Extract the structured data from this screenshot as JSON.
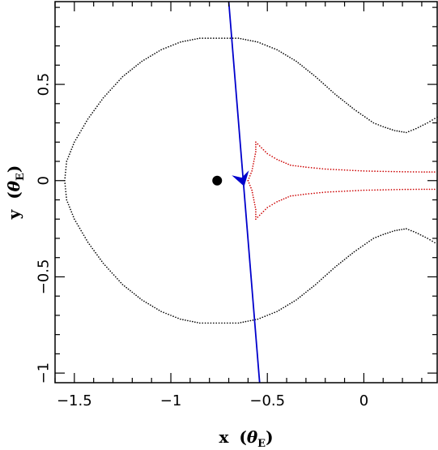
{
  "chart_data": {
    "type": "scatter",
    "xlabel": {
      "main": "x",
      "open": "(",
      "theta": "θ",
      "sub": "E",
      "close": ")"
    },
    "ylabel": {
      "main": "y",
      "open": "(",
      "theta": "θ",
      "sub": "E",
      "close": ")"
    },
    "xlim": [
      -1.6,
      0.38
    ],
    "ylim": [
      -1.05,
      0.93
    ],
    "x_ticks": [
      {
        "value": -1.5,
        "label": "−1.5"
      },
      {
        "value": -1.0,
        "label": "−1"
      },
      {
        "value": -0.5,
        "label": "−0.5"
      },
      {
        "value": 0.0,
        "label": "0"
      }
    ],
    "y_ticks": [
      {
        "value": -1.0,
        "label": "−1"
      },
      {
        "value": -0.5,
        "label": "−0.5"
      },
      {
        "value": 0.0,
        "label": "0"
      },
      {
        "value": 0.5,
        "label": "0.5"
      }
    ],
    "grid": false,
    "series": [
      {
        "kind": "critical-curve",
        "color": "#000000",
        "points": [
          [
            0.38,
            0.33
          ],
          [
            0.33,
            0.3
          ],
          [
            0.27,
            0.27
          ],
          [
            0.22,
            0.25
          ],
          [
            0.16,
            0.26
          ],
          [
            0.1,
            0.28
          ],
          [
            0.05,
            0.3
          ],
          [
            -0.05,
            0.37
          ],
          [
            -0.15,
            0.45
          ],
          [
            -0.25,
            0.54
          ],
          [
            -0.35,
            0.62
          ],
          [
            -0.45,
            0.68
          ],
          [
            -0.55,
            0.72
          ],
          [
            -0.65,
            0.74
          ],
          [
            -0.75,
            0.74
          ],
          [
            -0.85,
            0.74
          ],
          [
            -0.95,
            0.72
          ],
          [
            -1.05,
            0.68
          ],
          [
            -1.15,
            0.62
          ],
          [
            -1.25,
            0.54
          ],
          [
            -1.35,
            0.43
          ],
          [
            -1.43,
            0.32
          ],
          [
            -1.5,
            0.2
          ],
          [
            -1.54,
            0.1
          ],
          [
            -1.55,
            0.0
          ],
          [
            -1.54,
            -0.1
          ],
          [
            -1.5,
            -0.2
          ],
          [
            -1.43,
            -0.32
          ],
          [
            -1.35,
            -0.43
          ],
          [
            -1.25,
            -0.54
          ],
          [
            -1.15,
            -0.62
          ],
          [
            -1.05,
            -0.68
          ],
          [
            -0.95,
            -0.72
          ],
          [
            -0.85,
            -0.74
          ],
          [
            -0.75,
            -0.74
          ],
          [
            -0.65,
            -0.74
          ],
          [
            -0.55,
            -0.72
          ],
          [
            -0.45,
            -0.68
          ],
          [
            -0.35,
            -0.62
          ],
          [
            -0.25,
            -0.54
          ],
          [
            -0.15,
            -0.45
          ],
          [
            -0.05,
            -0.37
          ],
          [
            0.05,
            -0.3
          ],
          [
            0.1,
            -0.28
          ],
          [
            0.16,
            -0.26
          ],
          [
            0.22,
            -0.25
          ],
          [
            0.27,
            -0.27
          ],
          [
            0.33,
            -0.3
          ],
          [
            0.38,
            -0.33
          ]
        ]
      },
      {
        "kind": "caustic-upper",
        "color": "#cc0000",
        "points": [
          [
            -0.6,
            0.0
          ],
          [
            -0.58,
            0.05
          ],
          [
            -0.57,
            0.1
          ],
          [
            -0.56,
            0.15
          ],
          [
            -0.56,
            0.2
          ],
          [
            -0.53,
            0.17
          ],
          [
            -0.5,
            0.14
          ],
          [
            -0.45,
            0.11
          ],
          [
            -0.38,
            0.08
          ],
          [
            -0.3,
            0.07
          ],
          [
            -0.2,
            0.06
          ],
          [
            -0.1,
            0.055
          ],
          [
            0.0,
            0.05
          ],
          [
            0.1,
            0.048
          ],
          [
            0.2,
            0.046
          ],
          [
            0.3,
            0.045
          ],
          [
            0.38,
            0.045
          ]
        ]
      },
      {
        "kind": "caustic-lower",
        "color": "#cc0000",
        "points": [
          [
            -0.6,
            0.0
          ],
          [
            -0.58,
            -0.05
          ],
          [
            -0.57,
            -0.1
          ],
          [
            -0.56,
            -0.15
          ],
          [
            -0.56,
            -0.2
          ],
          [
            -0.53,
            -0.17
          ],
          [
            -0.5,
            -0.14
          ],
          [
            -0.45,
            -0.11
          ],
          [
            -0.38,
            -0.08
          ],
          [
            -0.3,
            -0.07
          ],
          [
            -0.2,
            -0.06
          ],
          [
            -0.1,
            -0.055
          ],
          [
            0.0,
            -0.05
          ],
          [
            0.1,
            -0.048
          ],
          [
            0.2,
            -0.046
          ],
          [
            0.3,
            -0.045
          ],
          [
            0.38,
            -0.045
          ]
        ]
      }
    ],
    "trajectory": {
      "color": "#0000cc",
      "start": [
        -0.7,
        0.93
      ],
      "end": [
        -0.54,
        -1.05
      ]
    },
    "arrow": {
      "color": "#0000cc",
      "tip": [
        -0.62,
        -0.03
      ],
      "back": [
        -0.64,
        0.04
      ]
    },
    "lens_position": {
      "x": -0.76,
      "y": 0.0,
      "color": "#000000"
    }
  }
}
